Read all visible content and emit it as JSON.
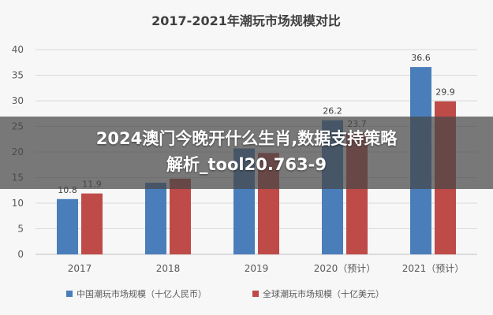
{
  "chart_data": {
    "type": "bar",
    "title": "2017-2021年潮玩市场规模对比",
    "categories": [
      "2017",
      "2018",
      "2019",
      "2020（预计）",
      "2021（预计）"
    ],
    "series": [
      {
        "name": "中国潮玩市场规模（十亿人民币）",
        "color": "#4a7ebb",
        "values": [
          10.8,
          14.0,
          20.7,
          26.2,
          36.6
        ],
        "labels": [
          "10.8",
          "",
          "",
          "26.2",
          "36.6"
        ]
      },
      {
        "name": "全球潮玩市场规模（十亿美元）",
        "color": "#be4b48",
        "values": [
          11.9,
          14.8,
          19.8,
          23.7,
          29.9
        ],
        "labels": [
          "11.9",
          "",
          "",
          "23.7",
          "29.9"
        ]
      }
    ],
    "yticks": [
      "0",
      "5",
      "10",
      "15",
      "20",
      "25",
      "30",
      "35",
      "40"
    ],
    "ylim": [
      0,
      40
    ],
    "grid": true,
    "legend": "bottom"
  },
  "overlay": {
    "line1": "2024澳门今晚开什么生肖,数据支持策略",
    "line2": "解析_tool20.763-9"
  }
}
